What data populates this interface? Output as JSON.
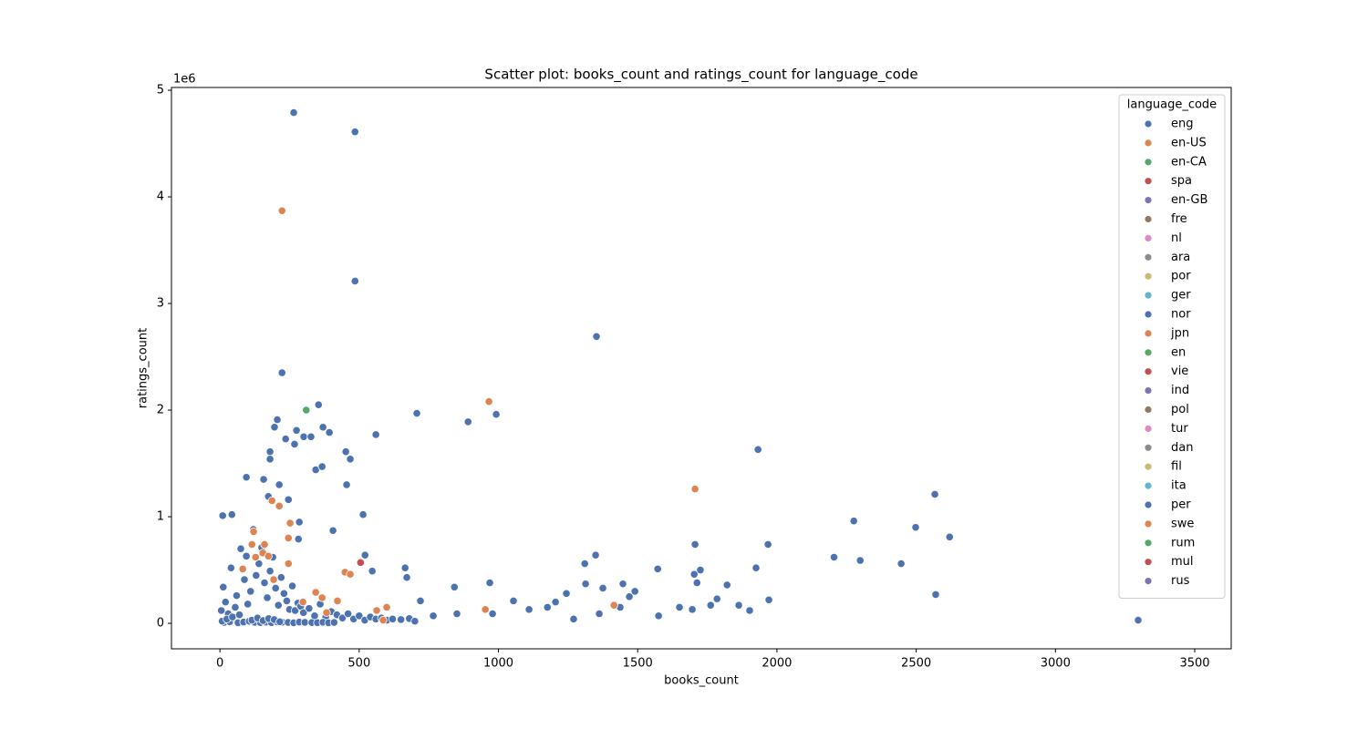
{
  "chart_data": {
    "type": "scatter",
    "title": "Scatter plot: books_count and ratings_count for language_code",
    "x_label": "books_count",
    "y_label": "ratings_count",
    "y_offset_label": "1e6",
    "legend_title": "language_code",
    "legend": "upper right",
    "xlim": [
      -174,
      3631
    ],
    "ylim": [
      -239000,
      5026000
    ],
    "xticks": [
      0,
      500,
      1000,
      1500,
      2000,
      2500,
      3000,
      3500
    ],
    "yticks": [
      0,
      {
        "value": 1000000,
        "label": "1"
      },
      {
        "value": 2000000,
        "label": "2"
      },
      {
        "value": 3000000,
        "label": "3"
      },
      {
        "value": 4000000,
        "label": "4"
      },
      {
        "value": 5000000,
        "label": "5"
      }
    ],
    "series": [
      {
        "name": "eng",
        "color": "#4c72b0",
        "x": [
          265,
          485,
          485,
          1352,
          223,
          354,
          707,
          891,
          992,
          206,
          196,
          275,
          370,
          393,
          560,
          236,
          301,
          327,
          268,
          452,
          468,
          180,
          180,
          344,
          367,
          1932,
          95,
          157,
          455,
          213,
          2567,
          174,
          246,
          2276,
          2498,
          285,
          10,
          43,
          514,
          406,
          2620,
          282,
          1968,
          1706,
          521,
          1349,
          2205,
          2299,
          2446,
          1310,
          1925,
          1572,
          665,
          547,
          1725,
          1703,
          671,
          969,
          1447,
          1713,
          1313,
          1821,
          842,
          1375,
          1490,
          1244,
          2570,
          1470,
          1971,
          1785,
          3297,
          1575,
          1205,
          1054,
          720,
          1650,
          1762,
          1863,
          1902,
          1696,
          1270,
          1176,
          1110,
          979,
          851,
          766,
          1362,
          1437,
          5,
          12,
          20,
          30,
          40,
          55,
          60,
          75,
          88,
          95,
          100,
          110,
          120,
          130,
          140,
          150,
          160,
          170,
          180,
          190,
          200,
          210,
          220,
          230,
          240,
          250,
          260,
          270,
          280,
          290,
          300,
          320,
          340,
          360,
          380,
          400,
          420,
          440,
          460,
          480,
          500,
          520,
          540,
          560,
          580,
          600,
          620,
          650,
          680,
          700,
          15,
          35,
          65,
          85,
          105,
          125,
          145,
          165,
          185,
          205,
          225,
          245,
          265,
          285,
          305,
          330,
          350,
          370,
          390,
          410,
          8,
          25,
          45,
          70,
          115,
          135,
          155,
          175,
          195,
          215
        ],
        "values": [
          4790000,
          4610000,
          3210000,
          2690000,
          2350000,
          2050000,
          1970000,
          1890000,
          1960000,
          1910000,
          1840000,
          1810000,
          1840000,
          1790000,
          1770000,
          1730000,
          1750000,
          1750000,
          1680000,
          1610000,
          1540000,
          1610000,
          1540000,
          1440000,
          1470000,
          1630000,
          1370000,
          1350000,
          1300000,
          1300000,
          1210000,
          1190000,
          1160000,
          960000,
          900000,
          950000,
          1010000,
          1020000,
          1020000,
          870000,
          810000,
          790000,
          740000,
          740000,
          640000,
          640000,
          620000,
          590000,
          560000,
          560000,
          520000,
          510000,
          520000,
          490000,
          500000,
          460000,
          430000,
          380000,
          370000,
          380000,
          370000,
          360000,
          340000,
          330000,
          300000,
          280000,
          270000,
          250000,
          220000,
          230000,
          30000,
          70000,
          200000,
          210000,
          210000,
          150000,
          170000,
          170000,
          120000,
          130000,
          40000,
          150000,
          130000,
          90000,
          90000,
          70000,
          90000,
          150000,
          120000,
          340000,
          200000,
          90000,
          520000,
          150000,
          260000,
          700000,
          410000,
          630000,
          180000,
          300000,
          880000,
          450000,
          560000,
          710000,
          380000,
          240000,
          490000,
          620000,
          330000,
          170000,
          430000,
          280000,
          210000,
          130000,
          350000,
          120000,
          190000,
          160000,
          100000,
          140000,
          70000,
          180000,
          60000,
          110000,
          80000,
          50000,
          90000,
          40000,
          70000,
          30000,
          60000,
          40000,
          50000,
          30000,
          40000,
          35000,
          45000,
          20000,
          8000,
          15000,
          5000,
          12000,
          20000,
          9000,
          7000,
          11000,
          6000,
          14000,
          10000,
          8000,
          5000,
          12000,
          9000,
          7000,
          6000,
          10000,
          5000,
          8000,
          20000,
          40000,
          60000,
          80000,
          30000,
          50000,
          25000,
          45000,
          35000,
          15000
        ]
      },
      {
        "name": "en-US",
        "color": "#dd8452",
        "x": [
          223,
          966,
          1706,
          187,
          213,
          252,
          246,
          115,
          160,
          154,
          174,
          128,
          246,
          449,
          468,
          82,
          193,
          344,
          367,
          422,
          1415,
          953,
          599,
          563,
          383,
          586,
          298,
          121
        ],
        "values": [
          3870000,
          2080000,
          1260000,
          1150000,
          1100000,
          940000,
          800000,
          740000,
          740000,
          660000,
          630000,
          620000,
          560000,
          480000,
          460000,
          510000,
          410000,
          290000,
          240000,
          210000,
          170000,
          130000,
          150000,
          120000,
          100000,
          30000,
          200000,
          860000
        ]
      },
      {
        "name": "en-CA",
        "color": "#55a868",
        "x": [
          310
        ],
        "values": [
          2000000
        ]
      },
      {
        "name": "spa",
        "color": "#c44e52",
        "x": [
          505
        ],
        "values": [
          570000
        ]
      },
      {
        "name": "en-GB",
        "color": "#8172b3",
        "x": [],
        "values": []
      },
      {
        "name": "fre",
        "color": "#937860",
        "x": [],
        "values": []
      },
      {
        "name": "nl",
        "color": "#da8bc3",
        "x": [],
        "values": []
      },
      {
        "name": "ara",
        "color": "#8c8c8c",
        "x": [],
        "values": []
      },
      {
        "name": "por",
        "color": "#ccb974",
        "x": [],
        "values": []
      },
      {
        "name": "ger",
        "color": "#64b5cd",
        "x": [],
        "values": []
      },
      {
        "name": "nor",
        "color": "#4c72b0",
        "x": [],
        "values": []
      },
      {
        "name": "jpn",
        "color": "#dd8452",
        "x": [],
        "values": []
      },
      {
        "name": "en",
        "color": "#55a868",
        "x": [],
        "values": []
      },
      {
        "name": "vie",
        "color": "#c44e52",
        "x": [],
        "values": []
      },
      {
        "name": "ind",
        "color": "#8172b3",
        "x": [],
        "values": []
      },
      {
        "name": "pol",
        "color": "#937860",
        "x": [],
        "values": []
      },
      {
        "name": "tur",
        "color": "#da8bc3",
        "x": [],
        "values": []
      },
      {
        "name": "dan",
        "color": "#8c8c8c",
        "x": [],
        "values": []
      },
      {
        "name": "fil",
        "color": "#ccb974",
        "x": [],
        "values": []
      },
      {
        "name": "ita",
        "color": "#64b5cd",
        "x": [],
        "values": []
      },
      {
        "name": "per",
        "color": "#4c72b0",
        "x": [],
        "values": []
      },
      {
        "name": "swe",
        "color": "#dd8452",
        "x": [],
        "values": []
      },
      {
        "name": "rum",
        "color": "#55a868",
        "x": [],
        "values": []
      },
      {
        "name": "mul",
        "color": "#c44e52",
        "x": [],
        "values": []
      },
      {
        "name": "rus",
        "color": "#8172b3",
        "x": [],
        "values": []
      }
    ]
  }
}
